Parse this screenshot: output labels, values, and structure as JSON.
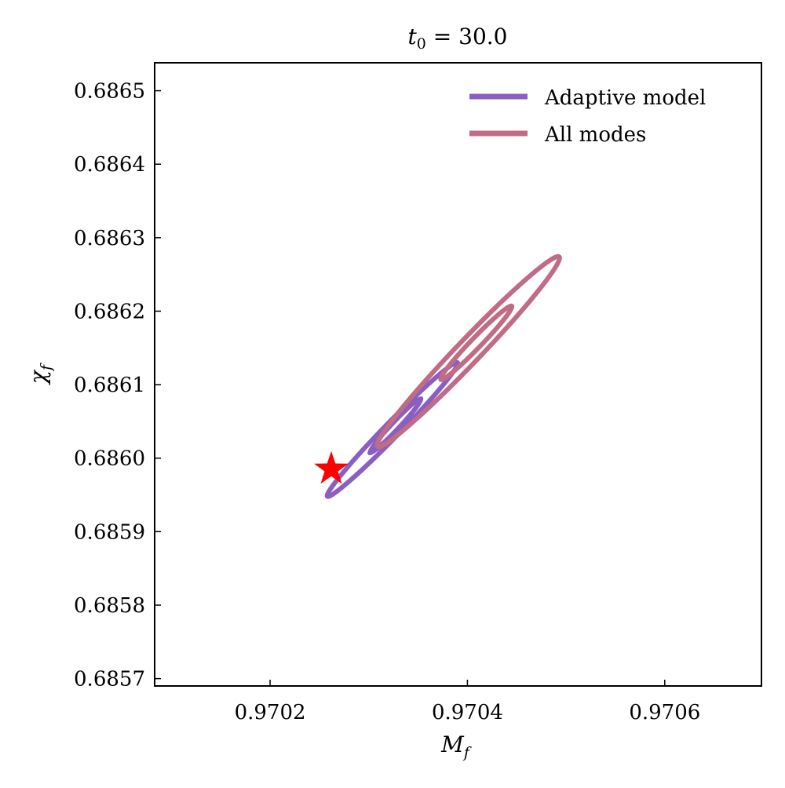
{
  "chart_data": {
    "type": "contour",
    "title": {
      "var": "t",
      "sub": "0",
      "rest": " = 30.0"
    },
    "xlabel": {
      "var": "M",
      "sub": "f"
    },
    "ylabel": {
      "var": "χ",
      "sub": "f"
    },
    "xlim": [
      0.970083,
      0.970698
    ],
    "ylim": [
      0.68569,
      0.686538
    ],
    "xticks": [
      0.9702,
      0.9704,
      0.9706
    ],
    "xtick_labels": [
      "0.9702",
      "0.9704",
      "0.9706"
    ],
    "yticks": [
      0.6857,
      0.6858,
      0.6859,
      0.686,
      0.6861,
      0.6862,
      0.6863,
      0.6864,
      0.6865
    ],
    "ytick_labels": [
      "0.6857",
      "0.6858",
      "0.6859",
      "0.6860",
      "0.6861",
      "0.6862",
      "0.6863",
      "0.6864",
      "0.6865"
    ],
    "legend_position": "top-right",
    "series": [
      {
        "name": "Adaptive model",
        "color": "#8a5fc1",
        "contours": [
          {
            "center": [
              0.970324,
              0.686039
            ],
            "tip": [
              0.97039,
              0.68613
            ],
            "minor_ratio": 0.08
          },
          {
            "center": [
              0.970327,
              0.686044
            ],
            "tip": [
              0.970353,
              0.686081
            ],
            "minor_ratio": 0.1
          }
        ]
      },
      {
        "name": "All modes",
        "color": "#c06c86",
        "contours": [
          {
            "center": [
              0.970401,
              0.686145
            ],
            "tip": [
              0.970493,
              0.686274
            ],
            "minor_ratio": 0.09
          },
          {
            "center": [
              0.970409,
              0.686157
            ],
            "tip": [
              0.970445,
              0.686207
            ],
            "minor_ratio": 0.1
          }
        ]
      }
    ],
    "marker": {
      "type": "star",
      "color": "#ff0000",
      "point": [
        0.970262,
        0.685985
      ]
    }
  }
}
